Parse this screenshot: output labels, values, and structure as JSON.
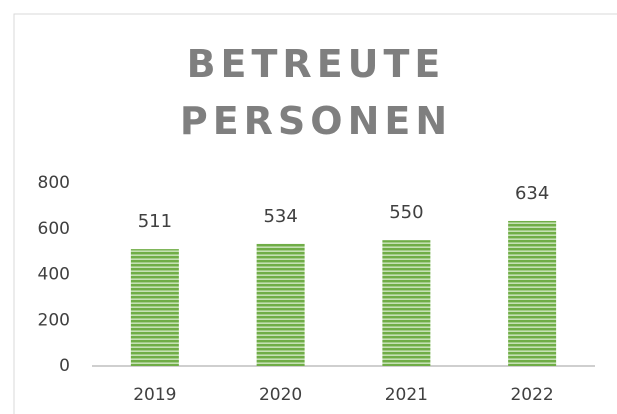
{
  "chart_data": {
    "type": "bar",
    "title": "BETREUTE PERSONEN",
    "categories": [
      "2019",
      "2020",
      "2021",
      "2022"
    ],
    "values": [
      511,
      534,
      550,
      634
    ],
    "color": "#70ad47",
    "ylim": [
      0,
      800
    ],
    "yticks": [
      0,
      200,
      400,
      600,
      800
    ],
    "grid": false
  }
}
